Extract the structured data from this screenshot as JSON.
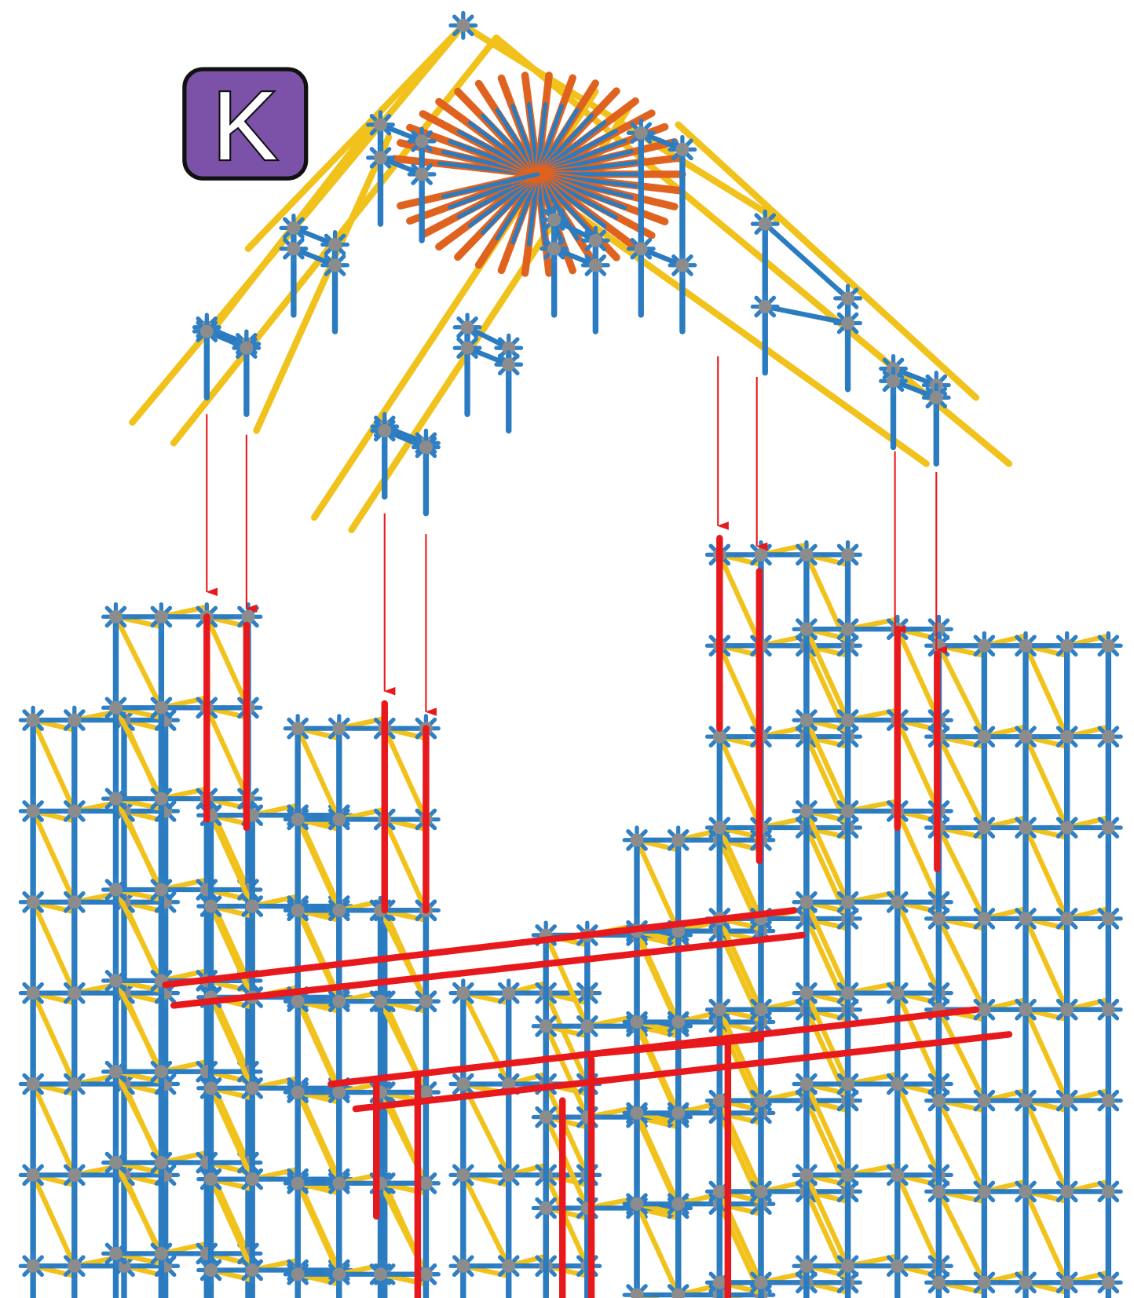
{
  "step_label": "K"
}
